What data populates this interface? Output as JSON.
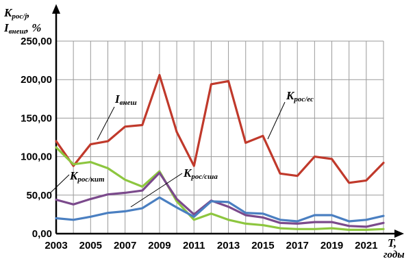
{
  "chart_data": {
    "type": "line",
    "ylabel": {
      "line1_main": "K",
      "line1_sub": "рос/j",
      "line1_tail": ",",
      "line2_main": "I",
      "line2_sub": "внеш",
      "line2_tail": ", %"
    },
    "xlabel": {
      "main": "T,",
      "sub": "годы"
    },
    "ylim": [
      0,
      250
    ],
    "xlim": [
      2003,
      2022
    ],
    "y_ticks": [
      "0,00",
      "50,00",
      "100,00",
      "150,00",
      "200,00",
      "250,00"
    ],
    "y_tick_values": [
      0,
      50,
      100,
      150,
      200,
      250
    ],
    "x_ticks": [
      "2003",
      "2005",
      "2007",
      "2009",
      "2011",
      "2013",
      "2015",
      "2017",
      "2019",
      "2021"
    ],
    "x_tick_values": [
      2003,
      2005,
      2007,
      2009,
      2011,
      2013,
      2015,
      2017,
      2019,
      2021
    ],
    "grid": true,
    "x": [
      2003,
      2004,
      2005,
      2006,
      2007,
      2008,
      2009,
      2010,
      2011,
      2012,
      2013,
      2014,
      2015,
      2016,
      2017,
      2018,
      2019,
      2020,
      2021,
      2022
    ],
    "series": [
      {
        "key": "es",
        "label_main": "K",
        "label_sub": "рос/ес",
        "color": "#c0392b",
        "values": [
          120,
          88,
          116,
          120,
          139,
          141,
          206,
          132,
          88,
          194,
          198,
          118,
          127,
          78,
          75,
          100,
          97,
          66,
          69,
          92
        ]
      },
      {
        "key": "vnesh",
        "label_main": "I",
        "label_sub": "внеш",
        "color": "#8dc63f",
        "values": [
          112,
          90,
          93,
          85,
          70,
          61,
          81,
          42,
          18,
          26,
          18,
          13,
          11,
          7,
          6,
          6,
          7,
          5,
          5,
          6
        ]
      },
      {
        "key": "kit",
        "label_main": "K",
        "label_sub": "рос/кит",
        "color": "#7b4a8c",
        "values": [
          44,
          38,
          45,
          51,
          53,
          56,
          79,
          45,
          25,
          43,
          35,
          24,
          21,
          14,
          13,
          15,
          15,
          10,
          9,
          14
        ]
      },
      {
        "key": "usa",
        "label_main": "K",
        "label_sub": "рос/сша",
        "color": "#4a7fc1",
        "values": [
          20,
          18,
          22,
          27,
          29,
          33,
          47,
          34,
          22,
          42,
          41,
          27,
          26,
          18,
          16,
          24,
          24,
          16,
          18,
          23
        ]
      }
    ]
  }
}
